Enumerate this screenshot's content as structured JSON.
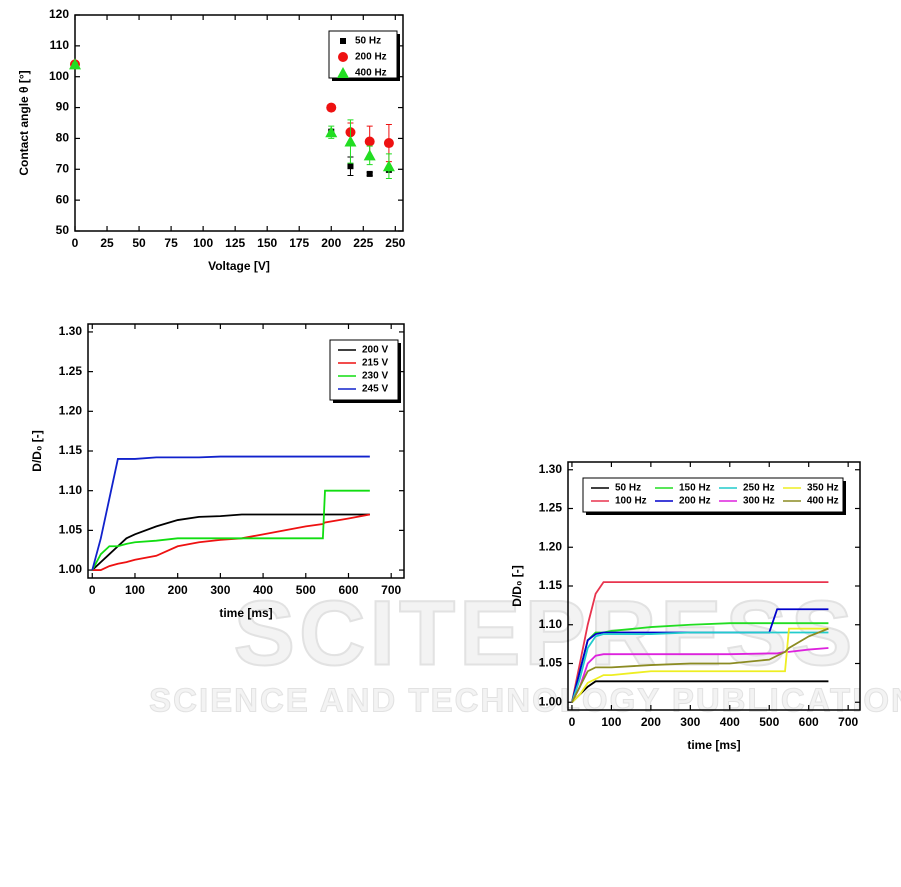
{
  "watermark": [
    "SCITEPRESS",
    "SCIENCE AND TECHNOLOGY PUBLICATIONS"
  ],
  "chart_data": [
    {
      "type": "scatter",
      "x_label": "Voltage [V]",
      "y_label": "Contact angle θ [°]",
      "x": [
        0,
        200,
        215,
        230,
        245
      ],
      "xlim": [
        0,
        256
      ],
      "xticks": [
        0,
        25,
        50,
        75,
        100,
        125,
        150,
        175,
        200,
        225,
        250
      ],
      "ylim": [
        50,
        120
      ],
      "yticks": [
        50,
        60,
        70,
        80,
        90,
        100,
        110,
        120
      ],
      "legend": "upper right",
      "series": [
        {
          "name": "50 Hz",
          "color": "#000000",
          "marker": "square",
          "values": [
            104,
            82,
            71,
            68.5,
            70
          ],
          "errors": [
            0.5,
            1,
            3,
            0.5,
            1
          ]
        },
        {
          "name": "200 Hz",
          "color": "#ee1111",
          "marker": "circle",
          "values": [
            104,
            90,
            82,
            79,
            78.5
          ],
          "errors": [
            0.5,
            0.5,
            3,
            5,
            6
          ]
        },
        {
          "name": "400 Hz",
          "color": "#22dd22",
          "marker": "triangle",
          "values": [
            104,
            82,
            79,
            74.5,
            71
          ],
          "errors": [
            0.5,
            2,
            7,
            3,
            4
          ]
        }
      ]
    },
    {
      "type": "line",
      "x_label": "time [ms]",
      "y_label": "D/D₀ [-]",
      "x": [
        0,
        20,
        40,
        60,
        80,
        100,
        150,
        200,
        250,
        300,
        350,
        400,
        450,
        500,
        540,
        545,
        600,
        650
      ],
      "xlim": [
        -10,
        730
      ],
      "xticks": [
        0,
        100,
        200,
        300,
        400,
        500,
        600,
        700
      ],
      "ylim": [
        0.99,
        1.31
      ],
      "yticks": [
        {
          "value": 1,
          "label": "1.00"
        },
        1.05,
        {
          "value": 1.1,
          "label": "1.10"
        },
        1.15,
        {
          "value": 1.2,
          "label": "1.20"
        },
        1.25,
        {
          "value": 1.3,
          "label": "1.30"
        }
      ],
      "legend": "upper right",
      "series": [
        {
          "name": "200 V",
          "color": "#000000",
          "values": [
            1.0,
            1.01,
            1.02,
            1.03,
            1.04,
            1.045,
            1.055,
            1.063,
            1.067,
            1.068,
            1.07,
            1.07,
            1.07,
            1.07,
            1.07,
            1.07,
            1.07,
            1.07
          ]
        },
        {
          "name": "215 V",
          "color": "#ee1111",
          "values": [
            1.0,
            1.0,
            1.005,
            1.008,
            1.01,
            1.013,
            1.018,
            1.03,
            1.035,
            1.038,
            1.04,
            1.045,
            1.05,
            1.055,
            1.058,
            1.06,
            1.065,
            1.07
          ]
        },
        {
          "name": "230 V",
          "color": "#11dd11",
          "values": [
            1.0,
            1.02,
            1.03,
            1.03,
            1.033,
            1.035,
            1.037,
            1.04,
            1.04,
            1.04,
            1.04,
            1.04,
            1.04,
            1.04,
            1.04,
            1.1,
            1.1,
            1.1
          ]
        },
        {
          "name": "245 V",
          "color": "#1122cc",
          "values": [
            1.0,
            1.04,
            1.09,
            1.14,
            1.14,
            1.14,
            1.142,
            1.142,
            1.142,
            1.143,
            1.143,
            1.143,
            1.143,
            1.143,
            1.143,
            1.143,
            1.143,
            1.143
          ]
        }
      ]
    },
    {
      "type": "line",
      "x_label": "time [ms]",
      "y_label": "D/D₀ [-]",
      "x": [
        0,
        20,
        40,
        60,
        80,
        100,
        200,
        300,
        400,
        500,
        520,
        540,
        550,
        600,
        650
      ],
      "xlim": [
        -10,
        730
      ],
      "xticks": [
        0,
        100,
        200,
        300,
        400,
        500,
        600,
        700
      ],
      "ylim": [
        0.99,
        1.31
      ],
      "yticks": [
        {
          "value": 1,
          "label": "1.00"
        },
        1.05,
        {
          "value": 1.1,
          "label": "1.10"
        },
        1.15,
        {
          "value": 1.2,
          "label": "1.20"
        },
        1.25,
        {
          "value": 1.3,
          "label": "1.30"
        }
      ],
      "legend": "upper left",
      "legend_columns": 4,
      "series": [
        {
          "name": "50 Hz",
          "color": "#000000",
          "values": [
            1.0,
            1.01,
            1.02,
            1.027,
            1.027,
            1.027,
            1.027,
            1.027,
            1.027,
            1.027,
            1.027,
            1.027,
            1.027,
            1.027,
            1.027
          ]
        },
        {
          "name": "100 Hz",
          "color": "#e8344e",
          "values": [
            1.0,
            1.05,
            1.1,
            1.14,
            1.155,
            1.155,
            1.155,
            1.155,
            1.155,
            1.155,
            1.155,
            1.155,
            1.155,
            1.155,
            1.155
          ]
        },
        {
          "name": "150 Hz",
          "color": "#22dd22",
          "values": [
            1.0,
            1.04,
            1.08,
            1.09,
            1.09,
            1.092,
            1.097,
            1.1,
            1.102,
            1.102,
            1.102,
            1.102,
            1.102,
            1.102,
            1.102
          ]
        },
        {
          "name": "200 Hz",
          "color": "#0000cc",
          "values": [
            1.0,
            1.04,
            1.08,
            1.088,
            1.09,
            1.09,
            1.09,
            1.09,
            1.09,
            1.09,
            1.12,
            1.12,
            1.12,
            1.12,
            1.12
          ]
        },
        {
          "name": "250 Hz",
          "color": "#22cccc",
          "values": [
            1.0,
            1.03,
            1.07,
            1.085,
            1.088,
            1.088,
            1.088,
            1.09,
            1.09,
            1.09,
            1.09,
            1.09,
            1.09,
            1.09,
            1.09
          ]
        },
        {
          "name": "300 Hz",
          "color": "#dd22dd",
          "values": [
            1.0,
            1.02,
            1.05,
            1.06,
            1.062,
            1.062,
            1.062,
            1.062,
            1.062,
            1.063,
            1.063,
            1.065,
            1.065,
            1.068,
            1.07
          ]
        },
        {
          "name": "350 Hz",
          "color": "#eeee22",
          "values": [
            1.0,
            1.01,
            1.025,
            1.03,
            1.035,
            1.035,
            1.04,
            1.04,
            1.04,
            1.04,
            1.04,
            1.04,
            1.095,
            1.095,
            1.095
          ]
        },
        {
          "name": "400 Hz",
          "color": "#8b8b22",
          "values": [
            1.0,
            1.02,
            1.04,
            1.045,
            1.045,
            1.045,
            1.048,
            1.05,
            1.05,
            1.055,
            1.06,
            1.065,
            1.07,
            1.085,
            1.095
          ]
        }
      ]
    }
  ]
}
